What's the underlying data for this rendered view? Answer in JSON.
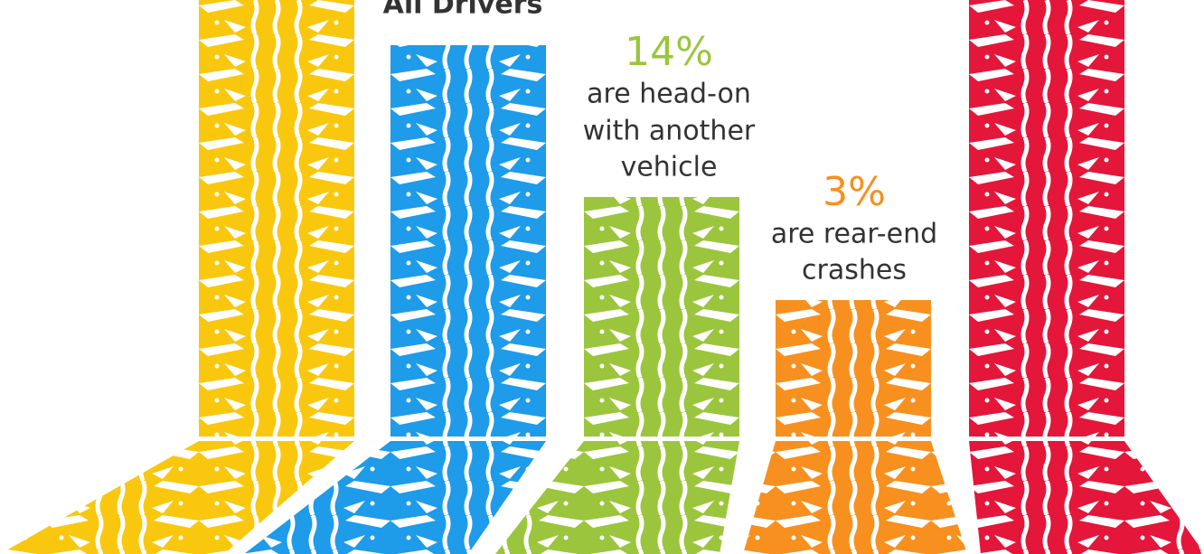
{
  "header": {
    "title": "All Drivers"
  },
  "callouts": [
    {
      "percent": "14%",
      "lines": [
        "are head-on",
        "with another",
        "vehicle"
      ]
    },
    {
      "percent": "3%",
      "lines": [
        "are rear-end",
        "crashes"
      ]
    }
  ]
}
